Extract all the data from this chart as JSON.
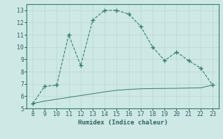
{
  "x": [
    8,
    9,
    10,
    11,
    12,
    13,
    14,
    15,
    16,
    17,
    18,
    19,
    20,
    21,
    22,
    23
  ],
  "y_main": [
    5.4,
    6.8,
    6.9,
    11.0,
    8.5,
    12.2,
    13.0,
    13.0,
    12.7,
    11.7,
    10.0,
    8.9,
    9.6,
    8.9,
    8.3,
    6.9
  ],
  "y_line": [
    5.4,
    5.6,
    5.75,
    5.9,
    6.05,
    6.2,
    6.35,
    6.48,
    6.55,
    6.6,
    6.62,
    6.63,
    6.64,
    6.66,
    6.68,
    6.9
  ],
  "line_color": "#2e7d6e",
  "bg_color": "#cde8e5",
  "grid_color_major": "#b8d8d4",
  "grid_color_minor": "#d8eceb",
  "xlabel": "Humidex (Indice chaleur)",
  "xlim": [
    7.5,
    23.5
  ],
  "ylim": [
    5,
    13.5
  ],
  "yticks": [
    5,
    6,
    7,
    8,
    9,
    10,
    11,
    12,
    13
  ],
  "xticks": [
    8,
    9,
    10,
    11,
    12,
    13,
    14,
    15,
    16,
    17,
    18,
    19,
    20,
    21,
    22,
    23
  ]
}
